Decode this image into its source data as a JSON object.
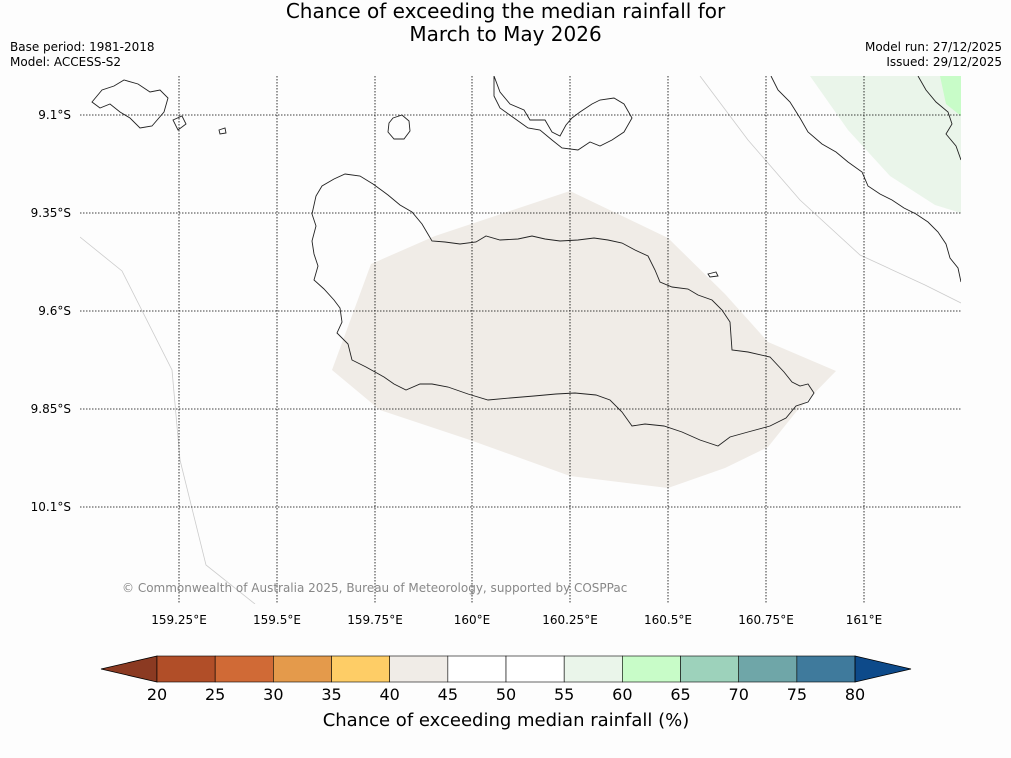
{
  "title": {
    "line1": "Chance of exceeding the median rainfall for",
    "line2": "March to May 2026"
  },
  "meta_left": {
    "base_period": "Base period: 1981-2018",
    "model": "Model: ACCESS-S2"
  },
  "meta_right": {
    "model_run": "Model run: 27/12/2025",
    "issued": "Issued: 29/12/2025"
  },
  "map": {
    "lat_ticks": [
      "9.1°S",
      "9.35°S",
      "9.6°S",
      "9.85°S",
      "10.1°S"
    ],
    "lon_ticks": [
      "159.25°E",
      "159.5°E",
      "159.75°E",
      "160°E",
      "160.25°E",
      "160.5°E",
      "160.75°E",
      "161°E"
    ],
    "credit": "© Commonwealth of Australia 2025, Bureau of Meteorology, supported by COSPPac",
    "region_fill": "#f0ece7",
    "region_category": "40-45",
    "corner_fill_light": "#eaf5ea",
    "corner_fill_strong": "#c8fcc8"
  },
  "colorbar": {
    "title": "Chance of exceeding median rainfall (%)",
    "labels": [
      "20",
      "25",
      "30",
      "35",
      "40",
      "45",
      "50",
      "55",
      "60",
      "65",
      "70",
      "75",
      "80"
    ],
    "under_color": "#8b3a22",
    "over_color": "#0d4a8a",
    "colors": [
      "#b14e28",
      "#d06a36",
      "#e49a4b",
      "#fecd66",
      "#f0ece7",
      "#ffffff",
      "#ffffff",
      "#eaf5ea",
      "#c8fcc8",
      "#9dd2bb",
      "#6fa6a8",
      "#3f7a9c"
    ]
  }
}
